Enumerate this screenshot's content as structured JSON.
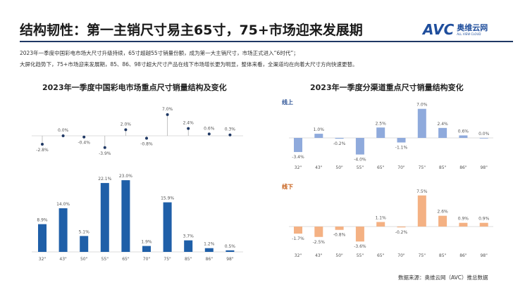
{
  "header": {
    "title": "结构韧性：第一主销尺寸易主65寸，75+市场迎来发展期",
    "logo_text": "AVC",
    "logo_cn": "奥维云网",
    "logo_en": "ALL VIEW CLOUD"
  },
  "intro": [
    "2023年一季度中国彩电市场大尺寸升级持续，65寸超越55寸销量份额，成为第一大主销尺寸，市场正式进入“6时代”；",
    "大屏化趋势下，75+市场迎来发展期，85、86、98寸超大尺寸产品在线下市场增长更为明显，整体来看，全渠道均在向着大尺寸方向快速更替。"
  ],
  "source": "数据来源：奥维云网（AVC）推总数据",
  "colors": {
    "left_bar": "#1f5fa8",
    "lollipop": "#1f3864",
    "online": "#8faadc",
    "offline": "#f4b183"
  },
  "chart_data": [
    {
      "type": "lollipop+bar",
      "title": "2023年一季度中国彩电市场重点尺寸销量结构及变化",
      "categories": [
        "32\"",
        "43\"",
        "50\"",
        "55\"",
        "65\"",
        "70\"",
        "75\"",
        "85\"",
        "86\"",
        "98\""
      ],
      "series": [
        {
          "values": [
            -2.8,
            0.0,
            -0.4,
            -3.9,
            2.0,
            -0.8,
            7.0,
            2.4,
            0.6,
            0.3
          ],
          "labels": [
            "-2.8%",
            "0.0%",
            "-0.4%",
            "-3.9%",
            "2.0%",
            "-0.8%",
            "7.0%",
            "2.4%",
            "0.6%",
            "0.3%"
          ]
        },
        {
          "values": [
            8.9,
            14.0,
            5.1,
            22.1,
            23.0,
            1.9,
            15.9,
            3.7,
            1.2,
            0.5
          ],
          "labels": [
            "8.9%",
            "14.0%",
            "5.1%",
            "22.1%",
            "23.0%",
            "1.9%",
            "15.9%",
            "3.7%",
            "1.2%",
            "0.5%"
          ]
        }
      ]
    },
    {
      "type": "bar",
      "title": "2023年一季度分渠道重点尺寸销量结构变化",
      "categories": [
        "32\"",
        "43\"",
        "50\"",
        "55\"",
        "65\"",
        "70\"",
        "75\"",
        "85\"",
        "86\"",
        "98\""
      ],
      "series": [
        {
          "name": "线上",
          "values": [
            -3.4,
            1.0,
            -0.2,
            -4.0,
            2.5,
            -1.1,
            7.0,
            2.4,
            0.6,
            0.0
          ],
          "labels": [
            "-3.4%",
            "1.0%",
            "-0.2%",
            "-4.0%",
            "2.5%",
            "-1.1%",
            "7.0%",
            "2.4%",
            "0.6%",
            "0.0%"
          ]
        },
        {
          "name": "线下",
          "values": [
            -1.7,
            -2.5,
            -0.8,
            -3.6,
            1.1,
            -0.2,
            7.5,
            2.6,
            0.9,
            0.9
          ],
          "labels": [
            "-1.7%",
            "-2.5%",
            "-0.8%",
            "-3.6%",
            "1.1%",
            "-0.2%",
            "7.5%",
            "2.6%",
            "0.9%",
            "0.9%"
          ]
        }
      ]
    }
  ]
}
